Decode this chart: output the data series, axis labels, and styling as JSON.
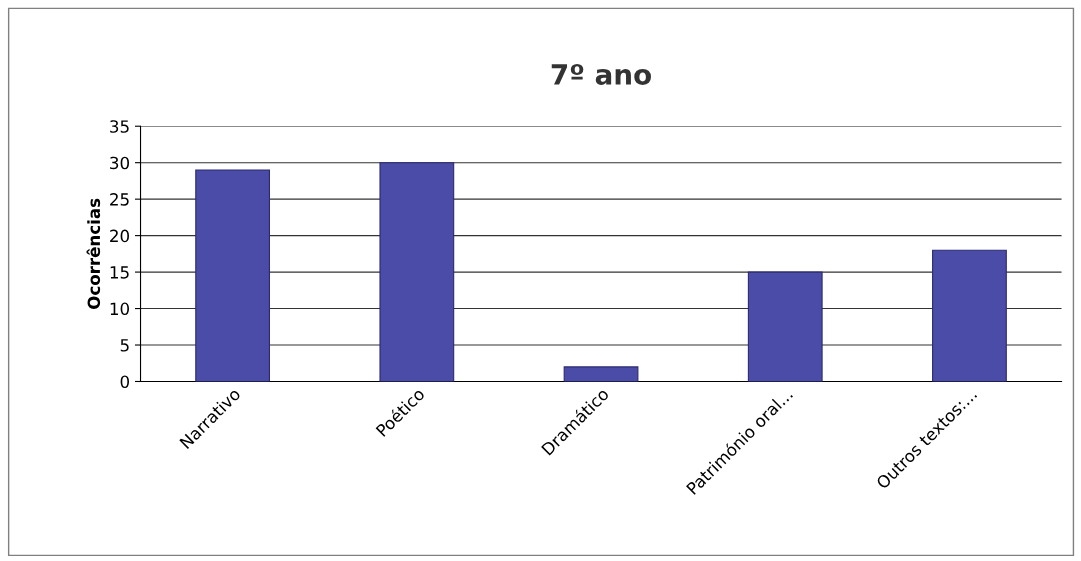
{
  "chart_data": {
    "type": "bar",
    "title": "7º ano",
    "ylabel": "Ocorrências",
    "categories": [
      "Narrativo",
      "Poético",
      "Dramático",
      "Património oral...",
      "Outros textos:..."
    ],
    "values": [
      29,
      30,
      2,
      15,
      18
    ],
    "color": "#4b4ba8",
    "ylim": [
      0,
      35
    ],
    "yticks": [
      0,
      5,
      10,
      15,
      20,
      25,
      30,
      35
    ],
    "grid": "y",
    "legend": false
  }
}
